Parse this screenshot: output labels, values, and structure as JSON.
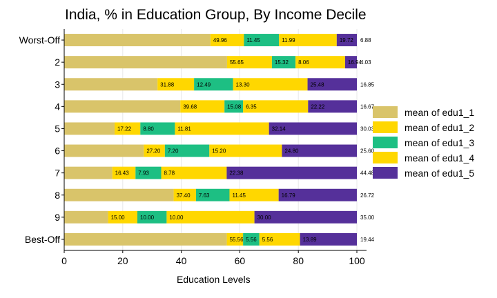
{
  "colors": {
    "edu1_1": "#d9c46a",
    "edu1_2": "#ffd700",
    "edu1_3": "#1dbf83",
    "edu1_4": "#ffd700",
    "edu1_5": "#55309a"
  },
  "chart_data": {
    "type": "bar",
    "orientation": "horizontal",
    "stacked": true,
    "title": "India, % in Education Group, By Income Decile",
    "xlabel": "Education Levels",
    "ylabel": "",
    "xlim": [
      0,
      100
    ],
    "xticks": [
      0,
      20,
      40,
      60,
      80,
      100
    ],
    "grid": true,
    "legend_position": "right",
    "categories": [
      "Worst-Off",
      "2",
      "3",
      "4",
      "5",
      "6",
      "7",
      "8",
      "9",
      "Best-Off"
    ],
    "series": [
      {
        "name": "mean of edu1_1",
        "key": "edu1_1",
        "values": [
          49.96,
          55.65,
          31.88,
          39.68,
          17.22,
          27.2,
          16.43,
          37.4,
          15.0,
          55.56
        ],
        "labels": [
          "",
          "",
          "",
          "",
          "",
          "",
          "",
          "",
          "",
          ""
        ]
      },
      {
        "name": "mean of edu1_2",
        "key": "edu1_2",
        "values": [
          11.45,
          15.32,
          12.49,
          15.08,
          8.8,
          7.2,
          7.93,
          7.63,
          10.0,
          5.56
        ],
        "labels": [
          "49.96",
          "55.65",
          "31.88",
          "39.68",
          "17.22",
          "27.20",
          "16.43",
          "37.40",
          "15.00",
          "55.56"
        ]
      },
      {
        "name": "mean of edu1_3",
        "key": "edu1_3",
        "values": [
          11.99,
          8.06,
          13.3,
          6.35,
          11.81,
          15.2,
          8.78,
          11.45,
          10.0,
          5.56
        ],
        "labels": [
          "11.45",
          "15.32",
          "12.49",
          "15.08",
          "8.80",
          "7.20",
          "7.93",
          "7.63",
          "10.00",
          "5.56"
        ]
      },
      {
        "name": "mean of edu1_4",
        "key": "edu1_4",
        "values": [
          19.72,
          16.94,
          25.48,
          22.22,
          32.14,
          24.8,
          22.38,
          16.79,
          30.0,
          13.89
        ],
        "labels": [
          "11.99",
          "8.06",
          "13.30",
          "6.35",
          "11.81",
          "15.20",
          "8.78",
          "11.45",
          "10.00",
          "5.56"
        ]
      },
      {
        "name": "mean of edu1_5",
        "key": "edu1_5",
        "values": [
          6.88,
          4.03,
          16.85,
          16.67,
          30.03,
          25.6,
          44.48,
          26.72,
          35.0,
          19.44
        ],
        "labels": [
          "19.72",
          "16.94",
          "25.48",
          "22.22",
          "32.14",
          "24.80",
          "22.38",
          "16.79",
          "30.00",
          "13.89"
        ]
      }
    ],
    "end_labels": [
      "6.88",
      "4.03",
      "16.85",
      "16.67",
      "30.03",
      "25.60",
      "44.48",
      "26.72",
      "35.00",
      "19.44"
    ]
  }
}
